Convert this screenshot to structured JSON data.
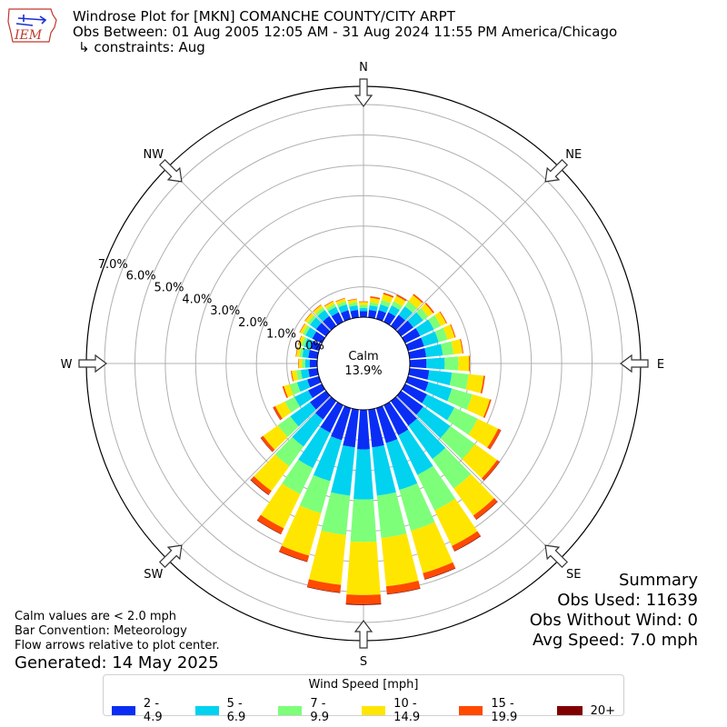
{
  "header": {
    "title_line1": "Windrose Plot for [MKN] COMANCHE COUNTY/CITY ARPT",
    "title_line2": "Obs Between: 01 Aug 2005 12:05 AM - 31 Aug 2024 11:55 PM America/Chicago",
    "title_line3": "↳ constraints: Aug",
    "logo_text": "IEM"
  },
  "summary": {
    "heading": "Summary",
    "obs_used": "Obs Used: 11639",
    "obs_without_wind": "Obs Without Wind: 0",
    "avg_speed": "Avg Speed: 7.0 mph"
  },
  "notes": {
    "calm_note": "Calm values are < 2.0 mph",
    "bar_convention": "Bar Convention: Meteorology",
    "flow_arrows": "Flow arrows relative to plot center.",
    "generated": "Generated: 14 May 2025"
  },
  "legend": {
    "title": "Wind Speed [mph]",
    "items": [
      {
        "label": "2 - 4.9",
        "color": "#0a2df5"
      },
      {
        "label": "5 - 6.9",
        "color": "#00d2f0"
      },
      {
        "label": "7 - 9.9",
        "color": "#7dff7a"
      },
      {
        "label": "10 - 14.9",
        "color": "#ffe600"
      },
      {
        "label": "15 - 19.9",
        "color": "#ff4a00"
      },
      {
        "label": "20+",
        "color": "#800000"
      }
    ]
  },
  "chart_data": {
    "type": "windrose",
    "bar_convention": "meteorology",
    "calm_label": "Calm",
    "calm_value": "13.9%",
    "calm_percent": 13.9,
    "radial_ticks": [
      "0.0%",
      "1.0%",
      "2.0%",
      "3.0%",
      "4.0%",
      "5.0%",
      "6.0%",
      "7.0%"
    ],
    "rmax_percent": 7.6,
    "compass_labels": [
      "N",
      "NE",
      "E",
      "SE",
      "S",
      "SW",
      "W",
      "NW"
    ],
    "speed_bins": [
      "2 - 4.9",
      "5 - 6.9",
      "7 - 9.9",
      "10 - 14.9",
      "15 - 19.9",
      "20+"
    ],
    "directions_deg": [
      0,
      10,
      20,
      30,
      40,
      50,
      60,
      70,
      80,
      90,
      100,
      110,
      120,
      130,
      140,
      150,
      160,
      170,
      180,
      190,
      200,
      210,
      220,
      230,
      240,
      250,
      260,
      270,
      280,
      290,
      300,
      310,
      320,
      330,
      340,
      350
    ],
    "series": [
      {
        "name": "2 - 4.9",
        "values": [
          0.2,
          0.25,
          0.3,
          0.35,
          0.45,
          0.5,
          0.55,
          0.55,
          0.55,
          0.55,
          0.65,
          0.7,
          0.8,
          0.9,
          1.0,
          1.1,
          1.2,
          1.25,
          1.3,
          1.25,
          1.1,
          1.0,
          0.75,
          0.65,
          0.5,
          0.4,
          0.3,
          0.25,
          0.3,
          0.3,
          0.35,
          0.4,
          0.4,
          0.35,
          0.3,
          0.25
        ]
      },
      {
        "name": "5 - 6.9",
        "values": [
          0.1,
          0.15,
          0.2,
          0.25,
          0.35,
          0.4,
          0.5,
          0.5,
          0.55,
          0.6,
          0.75,
          0.8,
          1.0,
          1.1,
          1.35,
          1.45,
          1.6,
          1.6,
          1.65,
          1.6,
          1.4,
          1.3,
          1.1,
          0.8,
          0.5,
          0.35,
          0.25,
          0.15,
          0.2,
          0.2,
          0.25,
          0.25,
          0.25,
          0.2,
          0.2,
          0.15
        ]
      },
      {
        "name": "7 - 9.9",
        "values": [
          0.1,
          0.1,
          0.15,
          0.15,
          0.2,
          0.2,
          0.25,
          0.3,
          0.35,
          0.45,
          0.55,
          0.7,
          0.85,
          1.0,
          1.2,
          1.3,
          1.4,
          1.4,
          1.4,
          1.3,
          1.1,
          0.95,
          0.8,
          0.5,
          0.35,
          0.25,
          0.15,
          0.1,
          0.1,
          0.1,
          0.1,
          0.1,
          0.1,
          0.1,
          0.1,
          0.1
        ]
      },
      {
        "name": "10 - 14.9",
        "values": [
          0.1,
          0.15,
          0.2,
          0.2,
          0.25,
          0.2,
          0.2,
          0.25,
          0.3,
          0.35,
          0.5,
          0.6,
          0.75,
          0.9,
          1.1,
          1.3,
          1.45,
          1.6,
          1.75,
          1.65,
          1.45,
          1.25,
          1.0,
          0.6,
          0.35,
          0.2,
          0.15,
          0.1,
          0.1,
          0.1,
          0.1,
          0.1,
          0.1,
          0.1,
          0.1,
          0.1
        ]
      },
      {
        "name": "15 - 19.9",
        "values": [
          0.02,
          0.05,
          0.05,
          0.05,
          0.05,
          0.05,
          0.03,
          0.03,
          0.03,
          0.03,
          0.05,
          0.05,
          0.1,
          0.1,
          0.15,
          0.18,
          0.2,
          0.25,
          0.3,
          0.25,
          0.2,
          0.2,
          0.15,
          0.1,
          0.08,
          0.05,
          0.03,
          0.02,
          0.02,
          0.02,
          0.02,
          0.02,
          0.02,
          0.02,
          0.02,
          0.02
        ]
      },
      {
        "name": "20+",
        "values": [
          0,
          0,
          0,
          0,
          0,
          0,
          0,
          0,
          0,
          0,
          0,
          0,
          0.01,
          0.01,
          0.02,
          0.02,
          0.02,
          0.02,
          0.03,
          0.02,
          0.02,
          0.02,
          0.02,
          0.01,
          0.01,
          0,
          0,
          0,
          0,
          0,
          0,
          0,
          0,
          0,
          0,
          0
        ]
      }
    ]
  }
}
